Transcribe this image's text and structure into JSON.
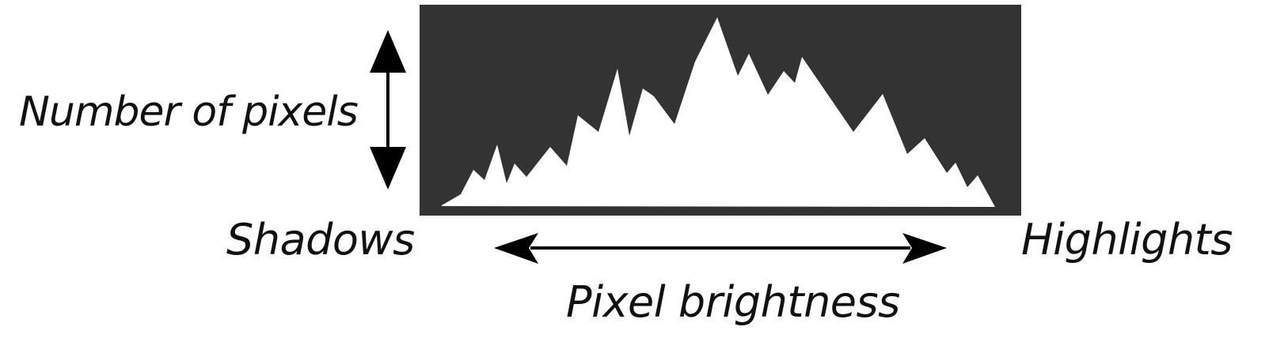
{
  "diagram": {
    "axis_labels": {
      "vertical": "Number of pixels",
      "left": "Shadows",
      "right": "Highlights",
      "horizontal": "Pixel brightness"
    },
    "colors": {
      "panel_background": "#333333",
      "histogram_fill": "#ffffff",
      "arrow": "#000000",
      "text": "#111111"
    },
    "histogram_shape": "jagged-mountain-silhouette",
    "icons": [
      "double-headed-vertical-arrow-icon",
      "double-headed-horizontal-arrow-icon"
    ]
  }
}
